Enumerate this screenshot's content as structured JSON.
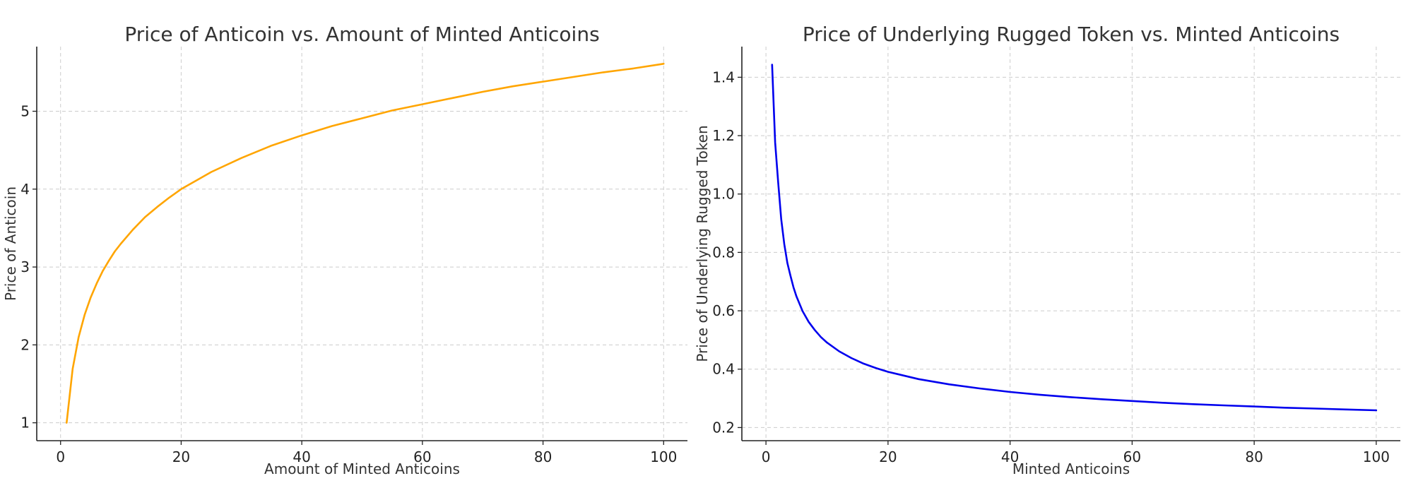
{
  "chart_data": [
    {
      "type": "line",
      "title": "Price of Anticoin vs. Amount of Minted Anticoins",
      "xlabel": "Amount of Minted Anticoins",
      "ylabel": "Price of Anticoin",
      "xlim": [
        -3.95,
        103.95
      ],
      "ylim": [
        0.77,
        5.83
      ],
      "xticks": [
        0,
        20,
        40,
        60,
        80,
        100
      ],
      "yticks": [
        1,
        2,
        3,
        4,
        5
      ],
      "grid": true,
      "series": [
        {
          "color": "#ffa500",
          "x": [
            1,
            2,
            3,
            4,
            5,
            6,
            7,
            8,
            9,
            10,
            12,
            14,
            16,
            18,
            20,
            25,
            30,
            35,
            40,
            45,
            50,
            55,
            60,
            65,
            70,
            75,
            80,
            85,
            90,
            95,
            100
          ],
          "y": [
            1.0,
            1.69,
            2.1,
            2.39,
            2.61,
            2.79,
            2.95,
            3.08,
            3.2,
            3.3,
            3.48,
            3.64,
            3.77,
            3.89,
            4.0,
            4.22,
            4.4,
            4.56,
            4.69,
            4.81,
            4.91,
            5.01,
            5.09,
            5.17,
            5.25,
            5.32,
            5.38,
            5.44,
            5.5,
            5.55,
            5.61
          ]
        }
      ]
    },
    {
      "type": "line",
      "title": "Price of Underlying Rugged Token vs. Minted Anticoins",
      "xlabel": "Minted Anticoins",
      "ylabel": "Price of Underlying Rugged Token",
      "xlim": [
        -3.95,
        103.95
      ],
      "ylim": [
        0.155,
        1.505
      ],
      "xticks": [
        0,
        20,
        40,
        60,
        80,
        100
      ],
      "yticks": [
        0.2,
        0.4,
        0.6,
        0.8,
        1.0,
        1.2,
        1.4
      ],
      "ytick_labels": [
        "0.2",
        "0.4",
        "0.6",
        "0.8",
        "1.0",
        "1.2",
        "1.4"
      ],
      "grid": true,
      "series": [
        {
          "color": "#0000ee",
          "x": [
            1,
            1.5,
            2,
            2.5,
            3,
            3.5,
            4,
            4.5,
            5,
            6,
            7,
            8,
            9,
            10,
            12,
            14,
            16,
            18,
            20,
            25,
            30,
            35,
            40,
            45,
            50,
            55,
            60,
            65,
            70,
            75,
            80,
            85,
            90,
            95,
            100
          ],
          "y": [
            1.443,
            1.177,
            1.04,
            0.914,
            0.829,
            0.764,
            0.721,
            0.681,
            0.649,
            0.599,
            0.562,
            0.534,
            0.51,
            0.491,
            0.461,
            0.438,
            0.419,
            0.404,
            0.391,
            0.366,
            0.348,
            0.334,
            0.322,
            0.312,
            0.304,
            0.297,
            0.291,
            0.285,
            0.28,
            0.276,
            0.272,
            0.268,
            0.265,
            0.262,
            0.259
          ]
        }
      ]
    }
  ]
}
